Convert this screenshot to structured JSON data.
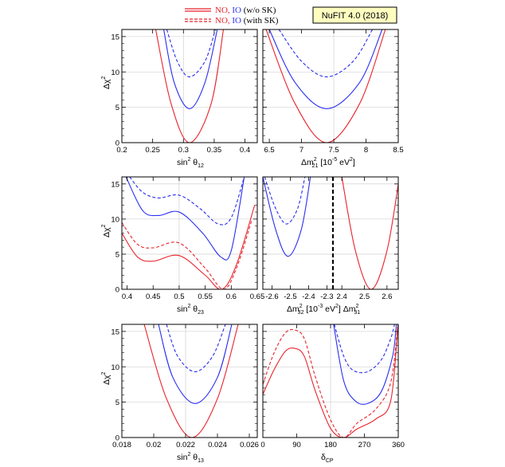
{
  "legend": {
    "no_label": "NO,",
    "io_label": "IO",
    "row1_note": "(w/o SK)",
    "row2_note": "(with SK)"
  },
  "badge": "NuFIT 4.0 (2018)",
  "colors": {
    "no": "#e8232b",
    "io": "#2a2ef0",
    "grid": "#c8c8c8",
    "frame": "#000000"
  },
  "ylabel": {
    "main": "Δχ",
    "sup": "2"
  },
  "xlabels": {
    "s12": {
      "pre": "sin",
      "sup": "2",
      "mid": " θ",
      "sub": "12"
    },
    "dm21": {
      "pre": "Δm",
      "sup": "2",
      "sub": "21",
      "rest": " [10",
      "sup2": "-5",
      "rest2": " eV",
      "sup3": "2",
      "rest3": "]"
    },
    "s23": {
      "pre": "sin",
      "sup": "2",
      "mid": " θ",
      "sub": "23"
    },
    "dm3l": {
      "pre": "Δm",
      "sup": "2",
      "sub": "32",
      "mid": "  [10",
      "sup2": "-3",
      "mid2": " eV",
      "sup3": "2",
      "mid3": "]  Δm",
      "sup4": "2",
      "sub2": "31"
    },
    "s13": {
      "pre": "sin",
      "sup": "2",
      "mid": " θ",
      "sub": "13"
    },
    "dcp": {
      "pre": "δ",
      "sub": "CP"
    }
  },
  "chart_data": [
    {
      "id": "s12",
      "type": "line",
      "xlim": [
        0.2,
        0.42
      ],
      "ylim": [
        0,
        16
      ],
      "xticks": [
        0.2,
        0.25,
        0.3,
        0.35,
        0.4
      ],
      "xticklabels": [
        "0.2",
        "0.25",
        "0.3",
        "0.35",
        "0.4"
      ],
      "yticks": [
        0,
        5,
        10,
        15
      ],
      "yticklabels": [
        "0",
        "5",
        "10",
        "15"
      ],
      "grid": true,
      "series": [
        {
          "ordering": "IO",
          "sk": "without",
          "x": [
            0.273,
            0.29,
            0.31,
            0.335,
            0.352
          ],
          "y": [
            16,
            11.5,
            9.3,
            11.5,
            16
          ]
        },
        {
          "ordering": "IO",
          "sk": "with",
          "x": [
            0.268,
            0.285,
            0.31,
            0.335,
            0.355
          ],
          "y": [
            16,
            8.5,
            4.8,
            8.5,
            16
          ]
        },
        {
          "ordering": "NO",
          "sk": "both",
          "x": [
            0.255,
            0.28,
            0.31,
            0.345,
            0.365
          ],
          "y": [
            16,
            5.5,
            0,
            5.5,
            16
          ]
        }
      ]
    },
    {
      "id": "dm21",
      "type": "line",
      "xlim": [
        6.4,
        8.5
      ],
      "ylim": [
        0,
        16
      ],
      "xticks": [
        6.5,
        7,
        7.5,
        8,
        8.5
      ],
      "xticklabels": [
        "6.5",
        "7",
        "7.5",
        "8",
        "8.5"
      ],
      "yticks": [
        0,
        5,
        10,
        15
      ],
      "yticklabels": [
        "",
        "",
        "",
        ""
      ],
      "grid": true,
      "series": [
        {
          "ordering": "IO",
          "sk": "without",
          "x": [
            6.65,
            7.0,
            7.39,
            7.8,
            8.1
          ],
          "y": [
            16,
            11.5,
            9.3,
            11.5,
            16
          ]
        },
        {
          "ordering": "IO",
          "sk": "with",
          "x": [
            6.5,
            6.9,
            7.39,
            7.9,
            8.25
          ],
          "y": [
            16,
            8.5,
            4.8,
            8.5,
            16
          ]
        },
        {
          "ordering": "NO",
          "sk": "both",
          "x": [
            6.45,
            6.9,
            7.39,
            7.9,
            8.3
          ],
          "y": [
            16,
            5.5,
            0,
            5.5,
            16
          ]
        }
      ]
    },
    {
      "id": "s23",
      "type": "line",
      "xlim": [
        0.39,
        0.65
      ],
      "ylim": [
        0,
        16
      ],
      "xticks": [
        0.4,
        0.45,
        0.5,
        0.55,
        0.6,
        0.65
      ],
      "xticklabels": [
        "0.4",
        "0.45",
        "0.5",
        "0.55",
        "0.6",
        "0.65"
      ],
      "yticks": [
        0,
        5,
        10,
        15
      ],
      "yticklabels": [
        "0",
        "5",
        "10",
        "15"
      ],
      "grid": true,
      "series": [
        {
          "ordering": "IO",
          "sk": "without",
          "x": [
            0.405,
            0.43,
            0.46,
            0.5,
            0.54,
            0.575,
            0.6,
            0.625
          ],
          "y": [
            16,
            13.8,
            13.0,
            13.4,
            11.5,
            9.3,
            10.2,
            16
          ]
        },
        {
          "ordering": "IO",
          "sk": "with",
          "x": [
            0.398,
            0.43,
            0.46,
            0.5,
            0.545,
            0.58,
            0.6,
            0.625
          ],
          "y": [
            16,
            11.2,
            10.5,
            11.0,
            8.0,
            4.6,
            5.5,
            16
          ]
        },
        {
          "ordering": "NO",
          "sk": "without",
          "x": [
            0.39,
            0.42,
            0.45,
            0.5,
            0.55,
            0.585,
            0.61,
            0.64
          ],
          "y": [
            9.5,
            6.4,
            5.9,
            6.6,
            3.0,
            0,
            3.0,
            10
          ]
        },
        {
          "ordering": "NO",
          "sk": "with",
          "x": [
            0.39,
            0.42,
            0.45,
            0.5,
            0.55,
            0.582,
            0.61,
            0.645
          ],
          "y": [
            8.0,
            4.6,
            4.0,
            4.8,
            2.0,
            0,
            3.5,
            12
          ]
        }
      ]
    },
    {
      "id": "dm3l",
      "type": "line",
      "xlim": [
        -2.65,
        2.65
      ],
      "ylim": [
        0,
        16
      ],
      "xticks": [
        -2.6,
        -2.5,
        -2.4,
        -2.3,
        2.4,
        2.5,
        2.6
      ],
      "xticklabels": [
        "-2.6",
        "-2.5",
        "-2.4",
        "-2.3",
        "2.4",
        "2.5",
        "2.6"
      ],
      "yticks": [
        0,
        5,
        10,
        15
      ],
      "yticklabels": [
        "",
        "",
        "",
        ""
      ],
      "grid": true,
      "split_at": 0,
      "series": [
        {
          "ordering": "IO",
          "sk": "without",
          "x": [
            -2.64,
            -2.58,
            -2.52,
            -2.46,
            -2.42
          ],
          "y": [
            16,
            11.5,
            9.3,
            11.5,
            16
          ]
        },
        {
          "ordering": "IO",
          "sk": "with",
          "x": [
            -2.65,
            -2.58,
            -2.512,
            -2.44,
            -2.39
          ],
          "y": [
            16,
            8.5,
            4.7,
            8.5,
            16
          ]
        },
        {
          "ordering": "NO",
          "sk": "both",
          "x": [
            2.4,
            2.46,
            2.53,
            2.6,
            2.655
          ],
          "y": [
            16,
            5.5,
            0,
            5.5,
            16
          ]
        }
      ]
    },
    {
      "id": "s13",
      "type": "line",
      "xlim": [
        0.018,
        0.0265
      ],
      "ylim": [
        0,
        16
      ],
      "xticks": [
        0.018,
        0.02,
        0.022,
        0.024,
        0.026
      ],
      "xticklabels": [
        "0.018",
        "0.02",
        "0.022",
        "0.024",
        "0.026"
      ],
      "yticks": [
        0,
        5,
        10,
        15
      ],
      "yticklabels": [
        "0",
        "5",
        "10",
        "15"
      ],
      "grid": true,
      "series": [
        {
          "ordering": "IO",
          "sk": "without",
          "x": [
            0.0208,
            0.0215,
            0.0226,
            0.0237,
            0.0245
          ],
          "y": [
            16,
            11.5,
            9.3,
            11.5,
            16
          ]
        },
        {
          "ordering": "IO",
          "sk": "with",
          "x": [
            0.0203,
            0.0212,
            0.0226,
            0.024,
            0.0249
          ],
          "y": [
            16,
            8.5,
            4.8,
            8.5,
            16
          ]
        },
        {
          "ordering": "NO",
          "sk": "both",
          "x": [
            0.0194,
            0.0208,
            0.0224,
            0.024,
            0.0253
          ],
          "y": [
            16,
            5.5,
            0,
            5.5,
            16
          ]
        }
      ]
    },
    {
      "id": "dcp",
      "type": "line",
      "xlim": [
        0,
        360
      ],
      "ylim": [
        0,
        16
      ],
      "xticks": [
        0,
        90,
        180,
        270,
        360
      ],
      "xticklabels": [
        "0",
        "90",
        "180",
        "270",
        "360"
      ],
      "yticks": [
        0,
        5,
        10,
        15
      ],
      "yticklabels": [
        "",
        "",
        "",
        ""
      ],
      "grid": true,
      "series": [
        {
          "ordering": "IO",
          "sk": "without",
          "x": [
            190,
            215,
            240,
            278,
            315,
            340,
            350
          ],
          "y": [
            16,
            11.5,
            9.5,
            9.3,
            11.0,
            14.0,
            16
          ]
        },
        {
          "ordering": "IO",
          "sk": "with",
          "x": [
            188,
            215,
            245,
            278,
            315,
            345,
            355
          ],
          "y": [
            16,
            8.0,
            5.2,
            4.8,
            6.5,
            11.5,
            16
          ]
        },
        {
          "ordering": "NO",
          "sk": "with",
          "x": [
            0,
            30,
            60,
            85,
            110,
            140,
            180,
            215,
            250,
            300,
            340,
            360
          ],
          "y": [
            6.1,
            9.6,
            12.2,
            12.6,
            11.5,
            6.5,
            1.3,
            0,
            1.2,
            2.6,
            5.2,
            16.5
          ]
        },
        {
          "ordering": "NO",
          "sk": "without",
          "x": [
            0,
            30,
            60,
            85,
            110,
            140,
            180,
            215,
            250,
            300,
            340,
            360
          ],
          "y": [
            7.5,
            12.0,
            14.8,
            15.2,
            14.0,
            8.5,
            2.5,
            0,
            2.0,
            4.0,
            7.8,
            16.5
          ]
        }
      ]
    }
  ]
}
